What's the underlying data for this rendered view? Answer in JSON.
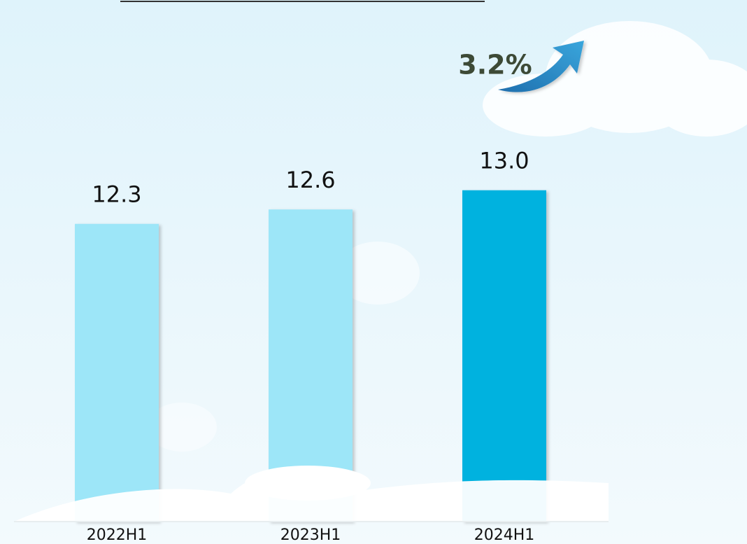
{
  "chart_data": {
    "type": "bar",
    "annotation": "3.2%",
    "categories": [
      "2022H1",
      "2023H1",
      "2024H1"
    ],
    "values": [
      12.3,
      12.6,
      13.0
    ],
    "value_labels": [
      "12.3",
      "12.6",
      "13.0"
    ],
    "colors": [
      "#9de6f8",
      "#9de6f8",
      "#05b2df"
    ],
    "ylim": [
      6.1,
      13.9
    ]
  }
}
